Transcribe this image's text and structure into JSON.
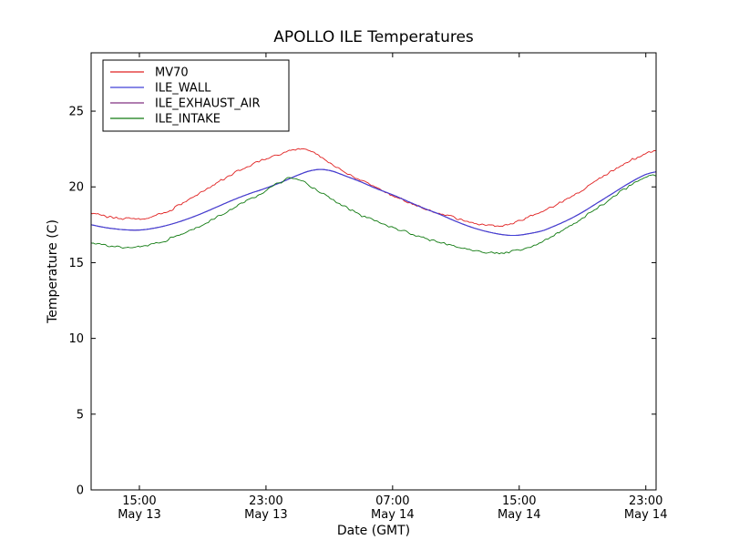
{
  "figure": {
    "title": "APOLLO ILE Temperatures",
    "xlabel": "Date (GMT)",
    "ylabel": "Temperature (C)"
  },
  "chart_data": {
    "type": "line",
    "title": "APOLLO ILE Temperatures",
    "xlabel": "Date (GMT)",
    "ylabel": "Temperature (C)",
    "grid": false,
    "legend_position": "upper-left",
    "background": "#ffffff",
    "axis_color": "#000000",
    "x_axis_description": "time in hours after May 13 12:00 GMT",
    "xlim_hours": [
      0,
      35.7
    ],
    "ylim": [
      0,
      28.85
    ],
    "y_ticks": [
      0,
      5,
      10,
      15,
      20,
      25
    ],
    "x_ticks": [
      {
        "pos_hours": 3.05,
        "time": "15:00",
        "date": "May 13"
      },
      {
        "pos_hours": 11.05,
        "time": "23:00",
        "date": "May 13"
      },
      {
        "pos_hours": 19.05,
        "time": "07:00",
        "date": "May 14"
      },
      {
        "pos_hours": 27.05,
        "time": "15:00",
        "date": "May 14"
      },
      {
        "pos_hours": 35.05,
        "time": "23:00",
        "date": "May 14"
      }
    ],
    "series": [
      {
        "name": "MV70",
        "color": "#e02020",
        "noisy": true,
        "points": [
          [
            0,
            18.3
          ],
          [
            1,
            18.05
          ],
          [
            2,
            17.92
          ],
          [
            3,
            17.9
          ],
          [
            4,
            18.1
          ],
          [
            5,
            18.5
          ],
          [
            6,
            19.05
          ],
          [
            7,
            19.65
          ],
          [
            8,
            20.3
          ],
          [
            9,
            20.9
          ],
          [
            10,
            21.4
          ],
          [
            11,
            21.85
          ],
          [
            12,
            22.2
          ],
          [
            12.8,
            22.45
          ],
          [
            13.5,
            22.5
          ],
          [
            14.2,
            22.2
          ],
          [
            15,
            21.6
          ],
          [
            16,
            21.0
          ],
          [
            17,
            20.45
          ],
          [
            18,
            19.95
          ],
          [
            19,
            19.45
          ],
          [
            20,
            19.0
          ],
          [
            21,
            18.6
          ],
          [
            22,
            18.25
          ],
          [
            23,
            17.95
          ],
          [
            24,
            17.65
          ],
          [
            25,
            17.45
          ],
          [
            25.7,
            17.4
          ],
          [
            26.5,
            17.55
          ],
          [
            27,
            17.75
          ],
          [
            28,
            18.1
          ],
          [
            29,
            18.6
          ],
          [
            30,
            19.15
          ],
          [
            31,
            19.75
          ],
          [
            32,
            20.45
          ],
          [
            33,
            21.1
          ],
          [
            34,
            21.7
          ],
          [
            35,
            22.15
          ],
          [
            35.7,
            22.35
          ]
        ]
      },
      {
        "name": "ILE_WALL",
        "color": "#4040d8",
        "noisy": false,
        "points": [
          [
            0,
            17.5
          ],
          [
            1,
            17.3
          ],
          [
            2,
            17.18
          ],
          [
            3,
            17.15
          ],
          [
            4,
            17.28
          ],
          [
            5,
            17.52
          ],
          [
            6,
            17.85
          ],
          [
            7,
            18.25
          ],
          [
            8,
            18.7
          ],
          [
            9,
            19.15
          ],
          [
            10,
            19.55
          ],
          [
            11,
            19.9
          ],
          [
            12,
            20.3
          ],
          [
            13,
            20.75
          ],
          [
            13.8,
            21.05
          ],
          [
            14.5,
            21.15
          ],
          [
            15.2,
            21.05
          ],
          [
            16,
            20.75
          ],
          [
            17,
            20.35
          ],
          [
            18,
            19.9
          ],
          [
            19,
            19.5
          ],
          [
            20,
            19.05
          ],
          [
            21,
            18.6
          ],
          [
            22,
            18.2
          ],
          [
            23,
            17.75
          ],
          [
            24,
            17.35
          ],
          [
            25,
            17.05
          ],
          [
            26,
            16.85
          ],
          [
            26.8,
            16.8
          ],
          [
            27.6,
            16.9
          ],
          [
            28.5,
            17.1
          ],
          [
            29,
            17.3
          ],
          [
            30,
            17.75
          ],
          [
            31,
            18.3
          ],
          [
            32,
            18.95
          ],
          [
            33,
            19.6
          ],
          [
            34,
            20.25
          ],
          [
            35,
            20.8
          ],
          [
            35.7,
            21.0
          ]
        ]
      },
      {
        "name": "ILE_EXHAUST_AIR",
        "color": "#803080",
        "noisy": false,
        "note": "not separately distinguishable in the plot; coincides with and is hidden beneath ILE_WALL",
        "points": [
          [
            0,
            17.5
          ],
          [
            1,
            17.3
          ],
          [
            2,
            17.18
          ],
          [
            3,
            17.15
          ],
          [
            4,
            17.28
          ],
          [
            5,
            17.52
          ],
          [
            6,
            17.85
          ],
          [
            7,
            18.25
          ],
          [
            8,
            18.7
          ],
          [
            9,
            19.15
          ],
          [
            10,
            19.55
          ],
          [
            11,
            19.9
          ],
          [
            12,
            20.3
          ],
          [
            13,
            20.75
          ],
          [
            13.8,
            21.05
          ],
          [
            14.5,
            21.15
          ],
          [
            15.2,
            21.05
          ],
          [
            16,
            20.75
          ],
          [
            17,
            20.35
          ],
          [
            18,
            19.9
          ],
          [
            19,
            19.5
          ],
          [
            20,
            19.05
          ],
          [
            21,
            18.6
          ],
          [
            22,
            18.2
          ],
          [
            23,
            17.75
          ],
          [
            24,
            17.35
          ],
          [
            25,
            17.05
          ],
          [
            26,
            16.85
          ],
          [
            26.8,
            16.8
          ],
          [
            27.6,
            16.9
          ],
          [
            28.5,
            17.1
          ],
          [
            29,
            17.3
          ],
          [
            30,
            17.75
          ],
          [
            31,
            18.3
          ],
          [
            32,
            18.95
          ],
          [
            33,
            19.6
          ],
          [
            34,
            20.25
          ],
          [
            35,
            20.8
          ],
          [
            35.7,
            21.0
          ]
        ]
      },
      {
        "name": "ILE_INTAKE",
        "color": "#107a10",
        "noisy": true,
        "points": [
          [
            0,
            16.35
          ],
          [
            1,
            16.15
          ],
          [
            2,
            16.02
          ],
          [
            2.6,
            16.0
          ],
          [
            3,
            16.05
          ],
          [
            4,
            16.25
          ],
          [
            5,
            16.55
          ],
          [
            6,
            17.0
          ],
          [
            7,
            17.5
          ],
          [
            8,
            18.05
          ],
          [
            9,
            18.6
          ],
          [
            10,
            19.15
          ],
          [
            11,
            19.7
          ],
          [
            11.8,
            20.25
          ],
          [
            12.4,
            20.55
          ],
          [
            13,
            20.5
          ],
          [
            13.6,
            20.25
          ],
          [
            14,
            19.95
          ],
          [
            15,
            19.3
          ],
          [
            16,
            18.7
          ],
          [
            17,
            18.2
          ],
          [
            18,
            17.75
          ],
          [
            19,
            17.35
          ],
          [
            20,
            17.0
          ],
          [
            21,
            16.65
          ],
          [
            22,
            16.35
          ],
          [
            23,
            16.1
          ],
          [
            24,
            15.85
          ],
          [
            25,
            15.68
          ],
          [
            25.8,
            15.62
          ],
          [
            26.6,
            15.75
          ],
          [
            27.4,
            15.95
          ],
          [
            28,
            16.15
          ],
          [
            28.6,
            16.45
          ],
          [
            29,
            16.7
          ],
          [
            30,
            17.25
          ],
          [
            31,
            17.9
          ],
          [
            32,
            18.6
          ],
          [
            33,
            19.35
          ],
          [
            34,
            20.05
          ],
          [
            34.8,
            20.5
          ],
          [
            35.4,
            20.75
          ],
          [
            35.7,
            20.75
          ]
        ]
      }
    ]
  }
}
